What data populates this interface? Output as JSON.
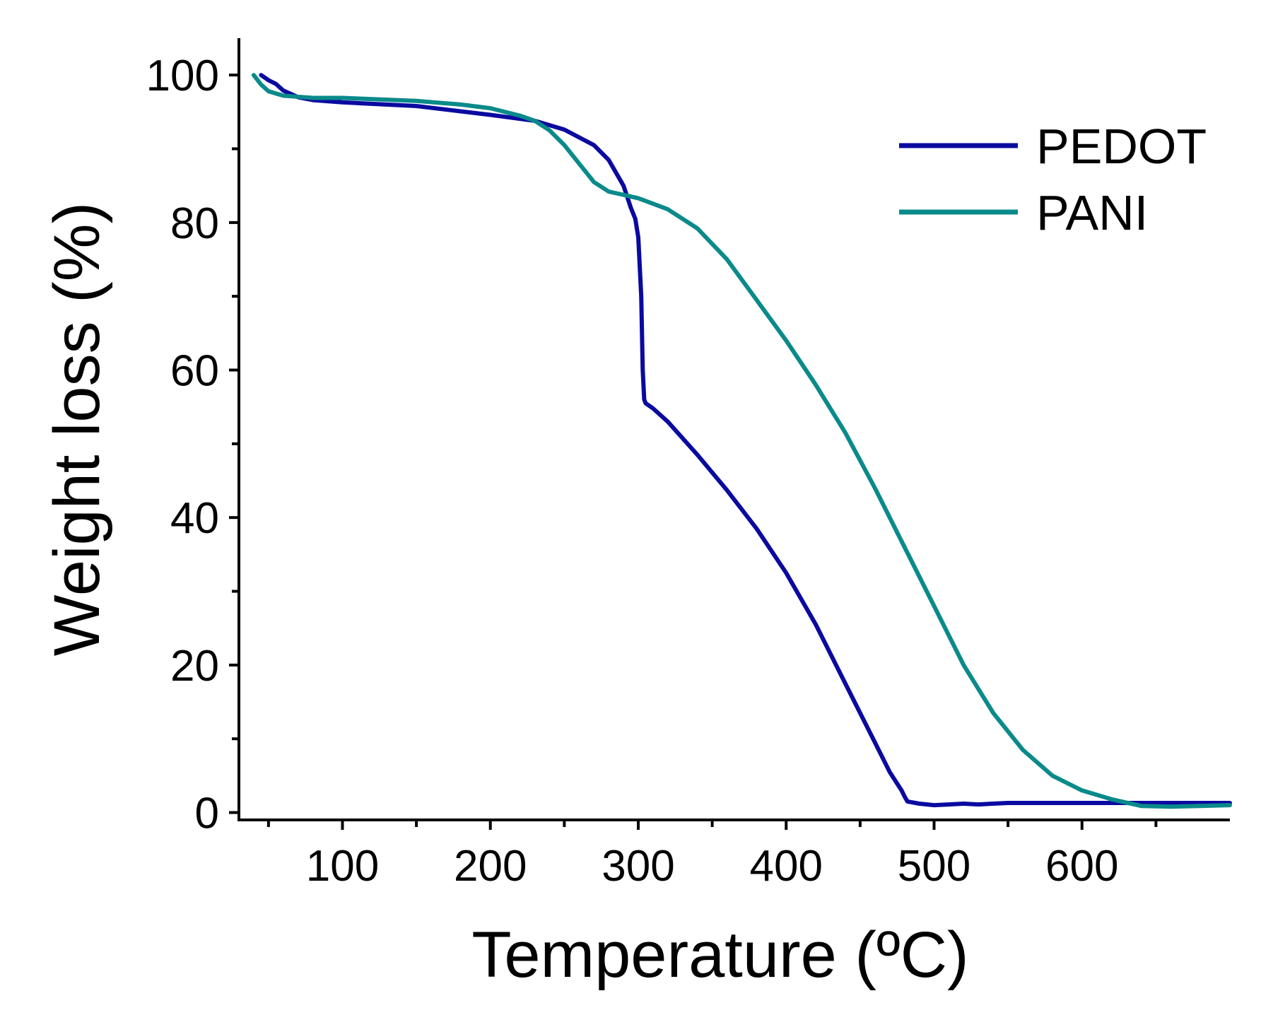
{
  "chart_data": {
    "type": "line",
    "xlabel": "Temperature (ºC)",
    "ylabel": "Weight loss (%)",
    "xlim": [
      30,
      700
    ],
    "ylim": [
      -1,
      105
    ],
    "x_ticks": [
      100,
      200,
      300,
      400,
      500,
      600
    ],
    "x_minor_ticks": [
      50,
      150,
      250,
      350,
      450,
      550,
      650
    ],
    "y_ticks": [
      0,
      20,
      40,
      60,
      80,
      100
    ],
    "y_minor_ticks": [
      10,
      30,
      50,
      70,
      90
    ],
    "legend_position": "top-right",
    "series": [
      {
        "name": "PEDOT",
        "color": "#0a0aa0",
        "x": [
          45,
          50,
          55,
          60,
          70,
          80,
          100,
          150,
          200,
          230,
          250,
          270,
          280,
          290,
          295,
          298,
          300,
          302,
          303,
          304,
          305,
          310,
          320,
          340,
          360,
          380,
          400,
          420,
          440,
          460,
          470,
          478,
          480,
          482,
          490,
          500,
          510,
          520,
          530,
          540,
          550,
          600,
          650,
          700
        ],
        "y": [
          100,
          99.3,
          98.8,
          97.9,
          97.0,
          96.6,
          96.3,
          95.8,
          94.6,
          93.8,
          92.6,
          90.5,
          88.5,
          85.0,
          82.0,
          80.5,
          78.0,
          70.0,
          60.0,
          56.0,
          55.5,
          54.8,
          53.0,
          48.5,
          43.7,
          38.5,
          32.5,
          25.5,
          17.5,
          9.5,
          5.5,
          3.0,
          2.2,
          1.5,
          1.2,
          1.0,
          1.1,
          1.2,
          1.1,
          1.2,
          1.3,
          1.3,
          1.3,
          1.3
        ]
      },
      {
        "name": "PANI",
        "color": "#0a8a8a",
        "x": [
          40,
          45,
          50,
          60,
          80,
          100,
          150,
          180,
          200,
          220,
          230,
          240,
          250,
          260,
          270,
          280,
          300,
          320,
          340,
          360,
          380,
          400,
          420,
          440,
          460,
          480,
          500,
          520,
          540,
          560,
          580,
          600,
          620,
          640,
          660,
          680,
          700
        ],
        "y": [
          100,
          98.7,
          97.8,
          97.2,
          96.9,
          96.9,
          96.5,
          96.0,
          95.5,
          94.5,
          93.8,
          92.5,
          90.5,
          88.0,
          85.5,
          84.2,
          83.3,
          81.8,
          79.2,
          75.0,
          69.5,
          64.0,
          58.0,
          51.5,
          44.0,
          36.0,
          28.0,
          20.0,
          13.5,
          8.5,
          5.0,
          3.0,
          1.8,
          0.9,
          0.8,
          0.9,
          1.0
        ]
      }
    ]
  }
}
